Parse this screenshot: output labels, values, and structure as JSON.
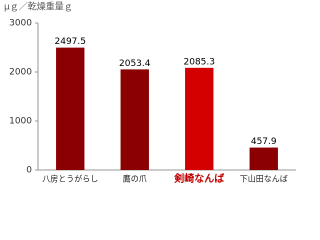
{
  "chart_data": {
    "type": "bar",
    "title": "μｇ／乾燥重量ｇ",
    "categories": [
      "八房とうがらし",
      "鷹の爪",
      "剣崎なんば",
      "下山田なんば"
    ],
    "values": [
      2497.5,
      2053.4,
      2085.3,
      457.9
    ],
    "colors": [
      "#8b0000",
      "#8b0000",
      "#d40000",
      "#8b0000"
    ],
    "emphasized_category": 2,
    "ylim": [
      0,
      3000
    ],
    "yticks": [
      0,
      1000,
      2000,
      3000
    ],
    "grid": false
  }
}
